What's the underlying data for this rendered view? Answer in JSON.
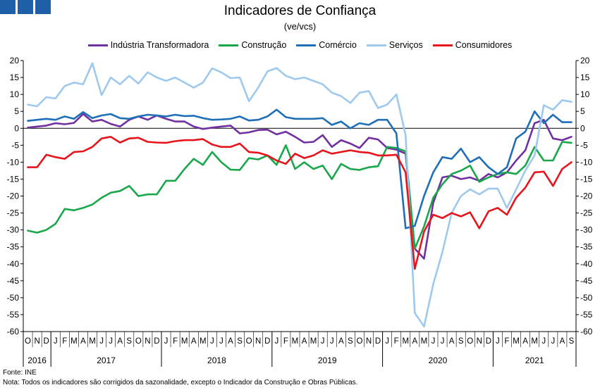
{
  "logo_icon": "ine-logo-icon",
  "title": "Indicadores de Confiança",
  "subtitle": "(ve/vcs)",
  "footer": {
    "source": "Fonte: INE",
    "note": "Nota: Todos os indicadores são corrigidos da sazonalidade, excepto o Indicador da Construção e Obras Públicas."
  },
  "chart_data": {
    "type": "line",
    "ylim": [
      -60,
      20
    ],
    "yticks": [
      20,
      15,
      10,
      5,
      0,
      -5,
      -10,
      -15,
      -20,
      -25,
      -30,
      -35,
      -40,
      -45,
      -50,
      -55,
      -60
    ],
    "y_axis_both_sides": true,
    "zero_line": true,
    "grid": false,
    "legend_position": "top",
    "month_letters": [
      "O",
      "N",
      "D",
      "J",
      "F",
      "M",
      "A",
      "M",
      "J",
      "J",
      "A",
      "S",
      "O",
      "N",
      "D",
      "J",
      "F",
      "M",
      "A",
      "M",
      "J",
      "J",
      "A",
      "S",
      "O",
      "N",
      "D",
      "J",
      "F",
      "M",
      "A",
      "M",
      "J",
      "J",
      "A",
      "S",
      "O",
      "N",
      "D",
      "J",
      "F",
      "M",
      "A",
      "M",
      "J",
      "J",
      "A",
      "S",
      "O",
      "N",
      "D",
      "J",
      "F",
      "M",
      "A",
      "M",
      "J",
      "J",
      "A",
      "S"
    ],
    "x": [
      "2016-10",
      "2016-11",
      "2016-12",
      "2017-01",
      "2017-02",
      "2017-03",
      "2017-04",
      "2017-05",
      "2017-06",
      "2017-07",
      "2017-08",
      "2017-09",
      "2017-10",
      "2017-11",
      "2017-12",
      "2018-01",
      "2018-02",
      "2018-03",
      "2018-04",
      "2018-05",
      "2018-06",
      "2018-07",
      "2018-08",
      "2018-09",
      "2018-10",
      "2018-11",
      "2018-12",
      "2019-01",
      "2019-02",
      "2019-03",
      "2019-04",
      "2019-05",
      "2019-06",
      "2019-07",
      "2019-08",
      "2019-09",
      "2019-10",
      "2019-11",
      "2019-12",
      "2020-01",
      "2020-02",
      "2020-03",
      "2020-04",
      "2020-05",
      "2020-06",
      "2020-07",
      "2020-08",
      "2020-09",
      "2020-10",
      "2020-11",
      "2020-12",
      "2021-01",
      "2021-02",
      "2021-03",
      "2021-04",
      "2021-05",
      "2021-06",
      "2021-07",
      "2021-08",
      "2021-09"
    ],
    "years": [
      {
        "label": "2016",
        "start": 0,
        "end": 3
      },
      {
        "label": "2017",
        "start": 3,
        "end": 15
      },
      {
        "label": "2018",
        "start": 15,
        "end": 27
      },
      {
        "label": "2019",
        "start": 27,
        "end": 39
      },
      {
        "label": "2020",
        "start": 39,
        "end": 51
      },
      {
        "label": "2021",
        "start": 51,
        "end": 60
      }
    ],
    "series": [
      {
        "name": "Indústria Transformadora",
        "color": "#7030a0",
        "values": [
          0.2,
          0.5,
          0.8,
          1.5,
          1.2,
          1.6,
          4.2,
          2.0,
          2.5,
          1.3,
          0.5,
          2.5,
          3.5,
          2.5,
          3.8,
          2.8,
          2.0,
          2.0,
          0.5,
          -0.2,
          0.2,
          0.5,
          0.8,
          -1.5,
          -1.2,
          -0.5,
          -0.4,
          -1.8,
          -1.0,
          -2.5,
          -4.2,
          -4.0,
          -2.0,
          -5.5,
          -3.5,
          -4.5,
          -5.8,
          -2.8,
          -3.3,
          -5.8,
          -6.3,
          -7.5,
          -35.5,
          -38.5,
          -22.0,
          -14.5,
          -14.0,
          -15.0,
          -14.5,
          -15.5,
          -13.5,
          -14.5,
          -13.0,
          -9.5,
          -6.5,
          1.5,
          2.5,
          -3.0,
          -3.5,
          -2.5
        ]
      },
      {
        "name": "Construção",
        "color": "#1aa64a",
        "values": [
          -30.2,
          -30.8,
          -30.0,
          -28.2,
          -23.8,
          -24.2,
          -23.5,
          -22.5,
          -20.5,
          -19.0,
          -18.5,
          -17.0,
          -20.0,
          -19.5,
          -19.5,
          -15.5,
          -15.5,
          -12.0,
          -9.0,
          -10.8,
          -7.0,
          -10.0,
          -12.2,
          -12.3,
          -8.8,
          -9.2,
          -8.0,
          -10.8,
          -5.0,
          -12.0,
          -10.0,
          -12.0,
          -11.0,
          -15.0,
          -10.5,
          -12.0,
          -12.3,
          -11.5,
          -11.2,
          -5.5,
          -5.8,
          -6.8,
          -35.5,
          -29.0,
          -20.5,
          -16.5,
          -13.5,
          -12.5,
          -11.0,
          -15.8,
          -14.5,
          -13.5,
          -13.0,
          -13.5,
          -11.0,
          -5.5,
          -9.5,
          -9.5,
          -4.0,
          -4.3
        ]
      },
      {
        "name": "Comércio",
        "color": "#1f6fb8",
        "values": [
          2.2,
          2.5,
          2.8,
          2.5,
          3.5,
          2.8,
          4.8,
          3.0,
          3.8,
          4.2,
          3.0,
          2.8,
          3.5,
          4.0,
          3.8,
          3.5,
          4.0,
          3.6,
          3.7,
          3.0,
          2.5,
          2.6,
          2.8,
          3.5,
          2.3,
          2.5,
          3.5,
          5.5,
          3.3,
          2.8,
          2.8,
          2.8,
          3.0,
          1.0,
          2.0,
          0.0,
          1.5,
          1.0,
          2.5,
          2.5,
          -1.5,
          -29.5,
          -28.8,
          -20.0,
          -13.0,
          -8.5,
          -9.0,
          -6.0,
          -10.0,
          -8.5,
          -11.5,
          -13.5,
          -11.5,
          -3.0,
          -1.0,
          5.0,
          1.5,
          4.0,
          1.8,
          1.8
        ]
      },
      {
        "name": "Serviços",
        "color": "#9ec9ee",
        "values": [
          7.0,
          6.5,
          9.2,
          8.8,
          12.5,
          13.5,
          13.0,
          19.2,
          9.8,
          15.0,
          13.0,
          15.5,
          13.2,
          16.5,
          15.0,
          14.0,
          15.0,
          13.5,
          12.0,
          13.5,
          17.7,
          16.5,
          14.8,
          15.0,
          8.0,
          12.0,
          16.8,
          17.8,
          15.5,
          14.5,
          15.0,
          14.0,
          13.0,
          10.5,
          9.5,
          7.5,
          10.5,
          11.0,
          6.0,
          7.0,
          10.0,
          -2.0,
          -54.5,
          -58.5,
          -46.0,
          -36.5,
          -25.0,
          -20.0,
          -18.0,
          -19.5,
          -17.8,
          -17.8,
          -23.5,
          -18.0,
          -12.5,
          -8.0,
          6.8,
          5.5,
          8.3,
          7.8
        ]
      },
      {
        "name": "Consumidores",
        "color": "#e8141b",
        "values": [
          -11.5,
          -11.5,
          -7.8,
          -8.5,
          -9.0,
          -7.0,
          -6.8,
          -5.5,
          -3.0,
          -2.5,
          -4.2,
          -3.0,
          -2.8,
          -4.0,
          -4.2,
          -4.3,
          -3.8,
          -3.5,
          -3.5,
          -3.2,
          -4.8,
          -5.5,
          -5.5,
          -4.5,
          -7.0,
          -7.2,
          -8.0,
          -9.5,
          -10.5,
          -7.5,
          -8.8,
          -8.0,
          -6.5,
          -7.5,
          -7.0,
          -6.5,
          -7.0,
          -7.2,
          -8.0,
          -8.0,
          -7.8,
          -13.0,
          -41.5,
          -30.5,
          -25.5,
          -26.5,
          -25.0,
          -26.0,
          -24.8,
          -29.5,
          -24.5,
          -23.5,
          -25.5,
          -20.5,
          -17.5,
          -13.0,
          -12.8,
          -17.0,
          -12.0,
          -10.0
        ]
      }
    ]
  }
}
